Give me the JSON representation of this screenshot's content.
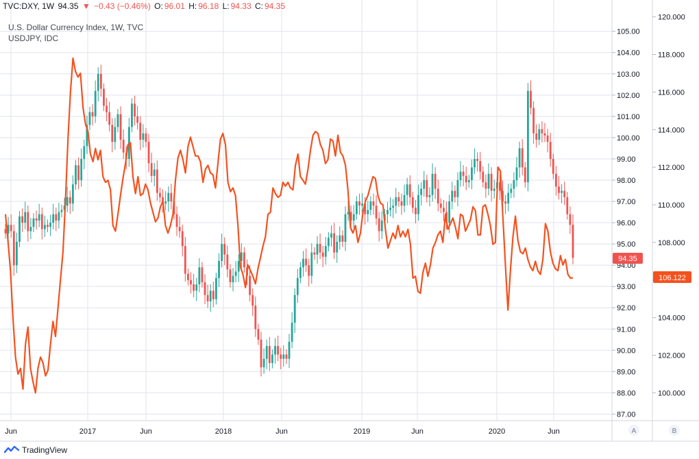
{
  "header": {
    "symbol": "TVC:DXY, 1W",
    "last": "94.35",
    "change": "−0.43 (−0.46%)",
    "o_label": "O:",
    "o": "96.01",
    "h_label": "H:",
    "h": "96.18",
    "l_label": "L:",
    "l": "94.33",
    "c_label": "C:",
    "c": "94.35"
  },
  "legend": {
    "series_a": "U.S. Dollar Currency Index, 1W, TVC",
    "series_b": "USDJPY, IDC"
  },
  "axis_buttons": {
    "a": "A",
    "b": "B"
  },
  "brand": "TradingView",
  "colors": {
    "up": "#26a69a",
    "down": "#ef5350",
    "line": "#f4511e",
    "grid": "#e0e3eb"
  },
  "chart_data": {
    "type": "line",
    "x_labels": [
      "Jun",
      "2017",
      "Jun",
      "2018",
      "Jun",
      "2019",
      "Jun",
      "2020",
      "Jun"
    ],
    "x_range": [
      "2016-05",
      "2020-09"
    ],
    "y_left": {
      "name": "U.S. Dollar Currency Index",
      "ticks": [
        "105.00",
        "104.00",
        "103.00",
        "102.00",
        "101.00",
        "100.00",
        "99.00",
        "98.00",
        "97.00",
        "96.00",
        "95.00",
        "94.00",
        "93.00",
        "92.00",
        "91.00",
        "90.00",
        "89.00",
        "88.00",
        "87.00"
      ],
      "range": [
        86.5,
        105.8
      ],
      "last_value": "94.35"
    },
    "y_right": {
      "name": "USDJPY",
      "ticks": [
        "120.000",
        "118.000",
        "116.000",
        "114.000",
        "112.000",
        "110.000",
        "108.000",
        "106.000",
        "104.000",
        "102.000",
        "100.000"
      ],
      "range": [
        98.8,
        120.0
      ],
      "last_value": "106.122"
    },
    "series": [
      {
        "name": "U.S. Dollar Currency Index, 1W, TVC",
        "kind": "candles",
        "closes": [
          95.5,
          95.9,
          95.6,
          94.0,
          95.1,
          96.3,
          96.0,
          96.5,
          95.6,
          95.8,
          96.2,
          96.1,
          96.4,
          95.7,
          95.9,
          95.8,
          96.0,
          96.4,
          96.1,
          96.5,
          96.6,
          96.8,
          97.2,
          96.9,
          97.8,
          98.7,
          98.0,
          99.0,
          99.6,
          100.6,
          101.2,
          101.0,
          102.2,
          103.0,
          102.3,
          101.5,
          101.2,
          100.6,
          99.8,
          100.5,
          101.1,
          99.9,
          99.3,
          99.0,
          100.5,
          101.6,
          101.0,
          100.7,
          99.9,
          100.2,
          99.8,
          98.8,
          98.2,
          98.5,
          97.4,
          97.2,
          96.9,
          97.0,
          97.4,
          97.0,
          96.4,
          95.8,
          95.6,
          94.9,
          93.6,
          93.3,
          93.1,
          92.8,
          93.1,
          93.9,
          93.2,
          92.6,
          92.3,
          92.8,
          92.4,
          93.4,
          94.2,
          95.0,
          94.5,
          93.8,
          93.2,
          93.5,
          93.7,
          94.2,
          94.6,
          93.9,
          93.5,
          92.6,
          92.1,
          91.0,
          90.5,
          89.2,
          89.6,
          90.2,
          89.4,
          89.8,
          90.2,
          89.8,
          89.6,
          89.8,
          89.6,
          90.4,
          91.3,
          92.6,
          93.4,
          93.9,
          94.3,
          94.0,
          93.5,
          94.6,
          94.5,
          95.0,
          94.6,
          94.4,
          94.9,
          95.3,
          95.5,
          94.6,
          95.1,
          95.4,
          95.1,
          96.4,
          96.5,
          96.1,
          96.4,
          97.0,
          96.8,
          96.9,
          96.4,
          96.6,
          97.0,
          96.8,
          96.2,
          95.6,
          96.1,
          96.4,
          96.6,
          96.7,
          96.8,
          97.2,
          97.0,
          96.8,
          97.3,
          97.8,
          97.2,
          96.7,
          96.4,
          97.3,
          97.6,
          98.0,
          97.2,
          97.3,
          98.3,
          97.6,
          96.9,
          96.7,
          96.5,
          96.0,
          97.0,
          97.5,
          97.2,
          98.0,
          98.4,
          98.2,
          97.9,
          98.0,
          98.6,
          99.0,
          98.9,
          98.4,
          97.9,
          97.6,
          98.3,
          97.5,
          97.6,
          97.9,
          97.5,
          97.0,
          96.9,
          97.4,
          97.6,
          98.0,
          98.6,
          99.5,
          98.6,
          97.9,
          102.2,
          101.4,
          100.2,
          99.9,
          100.4,
          100.2,
          100.1,
          99.8,
          99.0,
          98.3,
          97.7,
          97.4,
          97.5,
          97.2,
          96.4,
          95.9,
          94.35
        ]
      },
      {
        "name": "USDJPY, IDC",
        "kind": "line",
        "values": [
          109.5,
          108.1,
          106.5,
          104.0,
          101.9,
          101.0,
          101.3,
          100.2,
          102.6,
          103.5,
          101.3,
          100.6,
          100.0,
          101.3,
          101.9,
          101.6,
          100.9,
          101.2,
          102.6,
          103.8,
          103.0,
          104.5,
          106.0,
          107.5,
          110.2,
          113.5,
          116.0,
          117.8,
          117.1,
          116.8,
          117.0,
          115.2,
          114.3,
          113.9,
          112.7,
          112.3,
          113.0,
          112.4,
          112.9,
          111.5,
          111.2,
          111.3,
          110.8,
          108.9,
          108.6,
          109.5,
          110.5,
          111.4,
          112.2,
          113.2,
          113.3,
          111.5,
          110.6,
          111.5,
          110.5,
          110.6,
          111.1,
          110.8,
          110.1,
          109.6,
          109.1,
          109.3,
          109.9,
          110.2,
          108.9,
          108.5,
          108.9,
          109.5,
          111.3,
          112.5,
          112.9,
          112.4,
          111.7,
          113.1,
          113.6,
          113.1,
          112.6,
          112.6,
          112.3,
          111.2,
          111.9,
          112.1,
          111.7,
          111.6,
          110.9,
          112.2,
          113.5,
          113.8,
          113.2,
          111.2,
          110.7,
          110.9,
          110.5,
          108.9,
          106.7,
          106.3,
          105.6,
          106.8,
          106.5,
          106.2,
          105.8,
          106.6,
          107.2,
          107.8,
          108.3,
          109.5,
          109.6,
          110.9,
          110.6,
          110.4,
          110.5,
          111.2,
          111.0,
          111.2,
          110.9,
          110.8,
          112.1,
          112.7,
          111.5,
          111.3,
          111.1,
          111.9,
          112.9,
          113.7,
          113.9,
          113.8,
          113.2,
          112.9,
          112.2,
          112.4,
          113.5,
          113.4,
          112.6,
          113.7,
          112.8,
          112.6,
          112.1,
          110.8,
          108.8,
          108.5,
          108.9,
          108.0,
          108.5,
          109.6,
          110.2,
          110.5,
          111.0,
          111.5,
          111.4,
          110.5,
          110.1,
          110.0,
          108.7,
          107.7,
          108.1,
          108.5,
          108.2,
          108.9,
          108.3,
          108.6,
          108.3,
          108.7,
          107.9,
          106.1,
          106.2,
          105.4,
          105.3,
          106.4,
          106.9,
          106.2,
          106.8,
          107.7,
          108.0,
          108.4,
          108.6,
          108.0,
          109.5,
          108.7,
          109.0,
          109.3,
          108.8,
          108.2,
          109.5,
          109.4,
          108.6,
          108.9,
          109.2,
          109.9,
          109.7,
          108.4,
          108.4,
          109.9,
          110.0,
          109.5,
          108.9,
          107.9,
          108.0,
          112.0,
          111.8,
          109.3,
          106.8,
          104.4,
          106.5,
          108.3,
          109.4,
          108.1,
          107.5,
          107.4,
          107.7,
          107.1,
          106.7,
          106.5,
          107.0,
          106.5,
          106.3,
          107.1,
          109.0,
          108.6,
          107.5,
          106.9,
          106.6,
          106.5,
          107.3,
          106.8,
          107.1,
          106.3,
          106.1,
          106.122
        ]
      }
    ]
  }
}
